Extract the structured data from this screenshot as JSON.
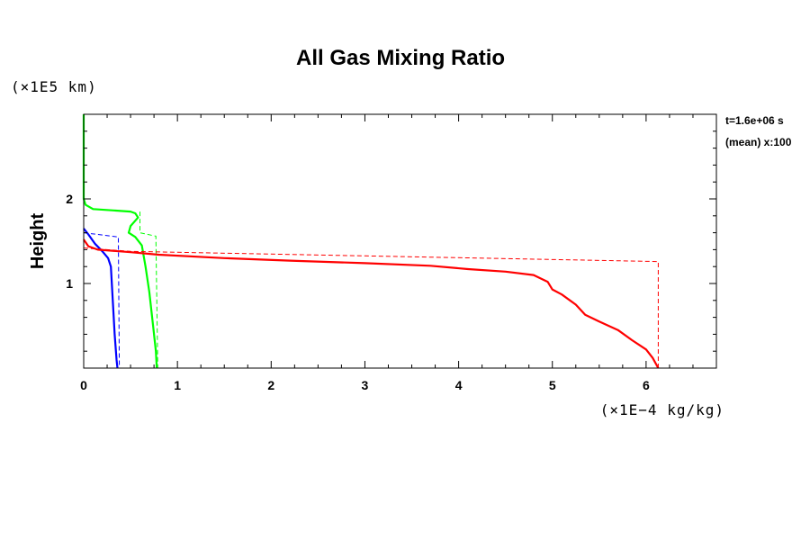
{
  "chart_data": {
    "type": "line",
    "title": "All Gas Mixing Ratio",
    "ylabel": "Height",
    "y_unit": "(×1E5 km)",
    "x_unit": "(×1E−4 kg/kg)",
    "xlim": [
      0,
      6.75
    ],
    "ylim": [
      0,
      3.0
    ],
    "x_ticks": [
      0,
      1,
      2,
      3,
      4,
      5,
      6
    ],
    "y_ticks": [
      1,
      2
    ],
    "info_lines": [
      "t=1.6e+06 s",
      "(mean) x:100"
    ],
    "series": [
      {
        "color": "#00ff00",
        "style": "solid",
        "points": [
          [
            0,
            3.0
          ],
          [
            0,
            2.0
          ],
          [
            0.02,
            1.93
          ],
          [
            0.1,
            1.88
          ],
          [
            0.5,
            1.85
          ],
          [
            0.55,
            1.83
          ],
          [
            0.58,
            1.78
          ],
          [
            0.5,
            1.68
          ],
          [
            0.48,
            1.6
          ],
          [
            0.55,
            1.55
          ],
          [
            0.62,
            1.45
          ],
          [
            0.66,
            1.2
          ],
          [
            0.7,
            0.9
          ],
          [
            0.74,
            0.5
          ],
          [
            0.77,
            0.2
          ],
          [
            0.78,
            0.0
          ]
        ]
      },
      {
        "color": "#00ff00",
        "style": "dashed",
        "points": [
          [
            0.6,
            1.85
          ],
          [
            0.6,
            1.6
          ],
          [
            0.77,
            1.56
          ],
          [
            0.79,
            0.0
          ]
        ]
      },
      {
        "color": "#0000ff",
        "style": "solid",
        "points": [
          [
            0,
            1.65
          ],
          [
            0.05,
            1.58
          ],
          [
            0.12,
            1.47
          ],
          [
            0.2,
            1.38
          ],
          [
            0.26,
            1.3
          ],
          [
            0.29,
            1.2
          ],
          [
            0.31,
            0.8
          ],
          [
            0.33,
            0.4
          ],
          [
            0.35,
            0.1
          ],
          [
            0.36,
            0.0
          ]
        ]
      },
      {
        "color": "#0000ff",
        "style": "dashed",
        "points": [
          [
            0,
            1.6
          ],
          [
            0.37,
            1.55
          ],
          [
            0.38,
            0.0
          ]
        ]
      },
      {
        "color": "#ff0000",
        "style": "solid",
        "points": [
          [
            0,
            1.52
          ],
          [
            0.05,
            1.44
          ],
          [
            0.15,
            1.4
          ],
          [
            0.5,
            1.37
          ],
          [
            0.8,
            1.34
          ],
          [
            1.5,
            1.3
          ],
          [
            2.2,
            1.27
          ],
          [
            3.0,
            1.24
          ],
          [
            3.7,
            1.21
          ],
          [
            4.1,
            1.17
          ],
          [
            4.5,
            1.14
          ],
          [
            4.8,
            1.1
          ],
          [
            4.95,
            1.02
          ],
          [
            5.0,
            0.93
          ],
          [
            5.1,
            0.87
          ],
          [
            5.25,
            0.75
          ],
          [
            5.35,
            0.63
          ],
          [
            5.5,
            0.55
          ],
          [
            5.7,
            0.45
          ],
          [
            5.85,
            0.33
          ],
          [
            6.0,
            0.22
          ],
          [
            6.07,
            0.12
          ],
          [
            6.13,
            0.0
          ]
        ]
      },
      {
        "color": "#ff0000",
        "style": "dashed",
        "points": [
          [
            0,
            1.42
          ],
          [
            0.5,
            1.38
          ],
          [
            6.13,
            1.26
          ],
          [
            6.13,
            0.0
          ]
        ]
      }
    ]
  }
}
